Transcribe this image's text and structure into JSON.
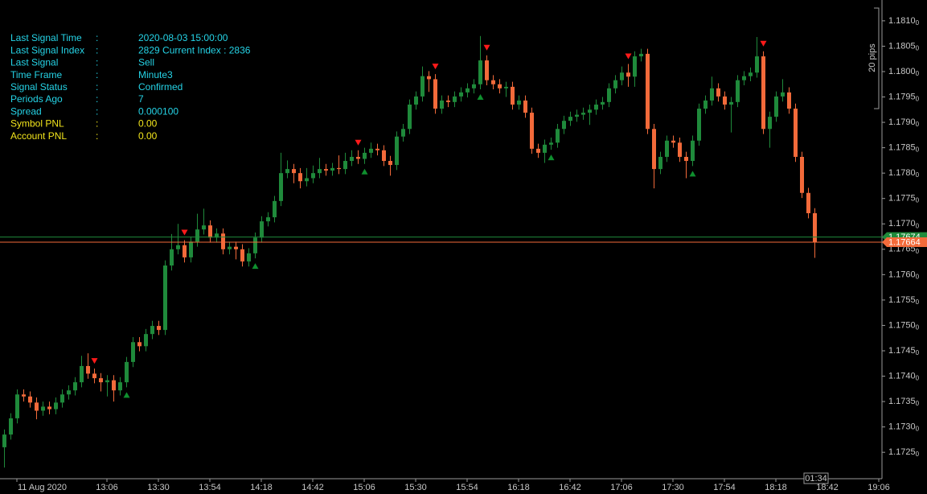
{
  "chart_data": {
    "type": "candlestick",
    "categories": [
      null,
      null,
      "11 Aug 2020",
      null,
      null,
      null,
      null,
      null,
      null,
      null,
      null,
      null,
      null,
      null,
      null,
      null,
      "13:06",
      null,
      null,
      null,
      null,
      null,
      null,
      null,
      "13:30",
      null,
      null,
      null,
      null,
      null,
      null,
      null,
      "13:54",
      null,
      null,
      null,
      null,
      null,
      null,
      null,
      "14:18",
      null,
      null,
      null,
      null,
      null,
      null,
      null,
      "14:42",
      null,
      null,
      null,
      null,
      null,
      null,
      null,
      "15:06",
      null,
      null,
      null,
      null,
      null,
      null,
      null,
      "15:30",
      null,
      null,
      null,
      null,
      null,
      null,
      null,
      "15:54",
      null,
      null,
      null,
      null,
      null,
      null,
      null,
      "16:18",
      null,
      null,
      null,
      null,
      null,
      null,
      null,
      "16:42",
      null,
      null,
      null,
      null,
      null,
      null,
      null,
      "17:06",
      null,
      null,
      null,
      null,
      null,
      null,
      null,
      "17:30",
      null,
      null,
      null,
      null,
      null,
      null,
      null,
      "17:54",
      null,
      null,
      null,
      null,
      null,
      null,
      null,
      "18:18",
      null,
      null,
      null,
      null,
      null,
      null,
      null,
      "18:42",
      null,
      null,
      null,
      null,
      null,
      null,
      null,
      "19:06"
    ],
    "open": [
      1.1726,
      1.17285,
      1.17317,
      1.17364,
      1.1736,
      1.17348,
      1.17332,
      1.1734,
      1.17335,
      1.17348,
      1.17364,
      1.17372,
      1.17388,
      1.1742,
      1.17405,
      1.17396,
      1.17388,
      1.17392,
      1.17372,
      1.17388,
      1.17428,
      1.17467,
      1.17459,
      1.17483,
      1.17499,
      1.17491,
      1.17618,
      1.1765,
      1.17658,
      1.17634,
      1.17665,
      1.17689,
      1.17697,
      1.17673,
      1.17681,
      1.1765,
      1.17655,
      1.1765,
      1.17626,
      1.17642,
      1.17673,
      1.17705,
      1.17713,
      1.17745,
      1.178,
      1.17808,
      1.178,
      1.17784,
      1.1779,
      1.178,
      1.17808,
      1.17805,
      1.1781,
      1.17808,
      1.17824,
      1.17832,
      1.17828,
      1.1784,
      1.17848,
      1.17845,
      1.17824,
      1.17816,
      1.17872,
      1.17887,
      1.17935,
      1.17951,
      1.17991,
      1.17985,
      1.17927,
      1.17943,
      1.1794,
      1.17951,
      1.17959,
      1.17967,
      1.17975,
      1.18022,
      1.17983,
      1.17975,
      1.17967,
      1.1797,
      1.17935,
      1.17943,
      1.17919,
      1.17848,
      1.1784,
      1.17856,
      1.1786,
      1.17887,
      1.17903,
      1.17911,
      1.17915,
      1.17919,
      1.17925,
      1.17935,
      1.1794,
      1.17967,
      1.17983,
      1.17998,
      1.1799,
      1.1803,
      1.18035,
      1.17887,
      1.17808,
      1.17832,
      1.17864,
      1.1786,
      1.17832,
      1.17824,
      1.17864,
      1.17927,
      1.17943,
      1.17967,
      1.17951,
      1.17935,
      1.1794,
      1.17983,
      1.17991,
      1.17998,
      1.1803,
      1.17887,
      1.17911,
      1.17951,
      1.17959,
      1.17927,
      1.17832,
      1.17761,
      1.17721,
      null,
      null,
      null,
      null,
      null,
      null,
      null,
      null,
      null,
      null
    ],
    "high": [
      1.17295,
      1.17327,
      1.17374,
      1.17374,
      1.1737,
      1.17358,
      1.1735,
      1.1735,
      1.17358,
      1.17374,
      1.17382,
      1.17398,
      1.1744,
      1.17445,
      1.17415,
      1.17406,
      1.17402,
      1.17402,
      1.17398,
      1.17438,
      1.17477,
      1.17477,
      1.17493,
      1.17509,
      1.17509,
      1.17628,
      1.1768,
      1.177,
      1.17668,
      1.17675,
      1.1772,
      1.1773,
      1.17707,
      1.17691,
      1.17691,
      1.17665,
      1.17665,
      1.1766,
      1.17652,
      1.17683,
      1.17715,
      1.17723,
      1.17755,
      1.1784,
      1.17825,
      1.17818,
      1.1781,
      1.1781,
      1.17815,
      1.1783,
      1.17818,
      1.1782,
      1.17835,
      1.1784,
      1.17845,
      1.17845,
      1.1785,
      1.1786,
      1.17858,
      1.17855,
      1.17834,
      1.17882,
      1.17897,
      1.17945,
      1.17961,
      1.1801,
      1.18001,
      1.17995,
      1.17953,
      1.17953,
      1.17961,
      1.17969,
      1.17977,
      1.17985,
      1.1807,
      1.18032,
      1.17993,
      1.17985,
      1.1798,
      1.1798,
      1.17953,
      1.17953,
      1.17929,
      1.17858,
      1.17866,
      1.1787,
      1.17897,
      1.17913,
      1.17921,
      1.17925,
      1.17929,
      1.17935,
      1.17945,
      1.1795,
      1.17977,
      1.17993,
      1.1801,
      1.18015,
      1.1804,
      1.18045,
      1.18045,
      1.17897,
      1.17842,
      1.17874,
      1.17874,
      1.1787,
      1.17842,
      1.17874,
      1.17937,
      1.17953,
      1.1799,
      1.17977,
      1.17961,
      1.1795,
      1.17993,
      1.18001,
      1.18008,
      1.18068,
      1.1804,
      1.17921,
      1.17961,
      1.17985,
      1.17969,
      1.17937,
      1.17842,
      1.17771,
      1.17731,
      null,
      null,
      null,
      null,
      null,
      null,
      null,
      null,
      null,
      null
    ],
    "low": [
      1.1722,
      1.17275,
      1.17307,
      1.1735,
      1.17338,
      1.17315,
      1.17322,
      1.17325,
      1.17325,
      1.17338,
      1.17354,
      1.17362,
      1.17378,
      1.17395,
      1.17386,
      1.1737,
      1.1736,
      1.1735,
      1.17362,
      1.17378,
      1.17418,
      1.17449,
      1.17449,
      1.17473,
      1.17481,
      1.17481,
      1.17608,
      1.1764,
      1.17624,
      1.17624,
      1.17655,
      1.17679,
      1.17663,
      1.17663,
      1.1764,
      1.1764,
      1.1763,
      1.17616,
      1.17616,
      1.17632,
      1.17663,
      1.17695,
      1.17703,
      1.17735,
      1.1779,
      1.1778,
      1.1777,
      1.17774,
      1.1778,
      1.1779,
      1.17795,
      1.17795,
      1.17798,
      1.17798,
      1.17814,
      1.17818,
      1.17818,
      1.1783,
      1.17835,
      1.17814,
      1.17795,
      1.17806,
      1.17862,
      1.17877,
      1.17925,
      1.17941,
      1.1796,
      1.17917,
      1.17917,
      1.1793,
      1.1793,
      1.17941,
      1.17949,
      1.17957,
      1.17965,
      1.17973,
      1.17965,
      1.17957,
      1.1795,
      1.17925,
      1.17925,
      1.17909,
      1.17838,
      1.1783,
      1.1782,
      1.17846,
      1.1785,
      1.17877,
      1.17893,
      1.17901,
      1.17905,
      1.17895,
      1.17915,
      1.17925,
      1.1793,
      1.17957,
      1.17973,
      1.1797,
      1.1797,
      1.1802,
      1.17877,
      1.1777,
      1.17798,
      1.17822,
      1.1785,
      1.17822,
      1.1779,
      1.17814,
      1.17854,
      1.17917,
      1.17933,
      1.17941,
      1.17925,
      1.1788,
      1.1793,
      1.17973,
      1.17981,
      1.17988,
      1.17877,
      1.1785,
      1.17901,
      1.17941,
      1.17917,
      1.17822,
      1.17751,
      1.17711,
      1.17633,
      null,
      null,
      null,
      null,
      null,
      null,
      null,
      null,
      null,
      null
    ],
    "close": [
      1.17285,
      1.17317,
      1.17364,
      1.1736,
      1.17348,
      1.17332,
      1.1734,
      1.17335,
      1.17348,
      1.17364,
      1.17372,
      1.17388,
      1.1742,
      1.17405,
      1.17396,
      1.17388,
      1.17392,
      1.17372,
      1.17388,
      1.17428,
      1.17467,
      1.17459,
      1.17483,
      1.17499,
      1.17491,
      1.17618,
      1.1765,
      1.17658,
      1.17634,
      1.17665,
      1.17689,
      1.17697,
      1.17673,
      1.17681,
      1.1765,
      1.17655,
      1.1765,
      1.17626,
      1.17642,
      1.17673,
      1.17705,
      1.17713,
      1.17745,
      1.178,
      1.17808,
      1.178,
      1.17784,
      1.1779,
      1.178,
      1.17808,
      1.17805,
      1.1781,
      1.17808,
      1.17824,
      1.17832,
      1.17828,
      1.1784,
      1.17848,
      1.17845,
      1.17824,
      1.17816,
      1.17872,
      1.17887,
      1.17935,
      1.17951,
      1.17991,
      1.17985,
      1.17927,
      1.17943,
      1.1794,
      1.17951,
      1.17959,
      1.17967,
      1.17975,
      1.18022,
      1.17983,
      1.17975,
      1.17967,
      1.1797,
      1.17935,
      1.17943,
      1.17919,
      1.17848,
      1.1784,
      1.17856,
      1.1786,
      1.17887,
      1.17903,
      1.17911,
      1.17915,
      1.17919,
      1.17925,
      1.17935,
      1.1794,
      1.17967,
      1.17983,
      1.17998,
      1.1799,
      1.1803,
      1.18035,
      1.17887,
      1.17808,
      1.17832,
      1.17864,
      1.1786,
      1.17832,
      1.17824,
      1.17864,
      1.17927,
      1.17943,
      1.17967,
      1.17951,
      1.17935,
      1.1794,
      1.17983,
      1.17991,
      1.17998,
      1.1803,
      1.17887,
      1.17911,
      1.17951,
      1.17959,
      1.17927,
      1.17832,
      1.17761,
      1.17721,
      1.17664,
      null,
      null,
      null,
      null,
      null,
      null,
      null,
      null,
      null,
      null
    ],
    "up_color": "#1f8a3b",
    "down_color": "#f26a3a",
    "sell_signals": [
      14,
      28,
      55,
      67,
      75,
      97,
      118
    ],
    "sell_color": "#ff1a1a",
    "buy_signals": [
      19,
      39,
      56,
      74,
      85,
      107
    ],
    "buy_color": "#0f8f2e",
    "ylim": [
      1.17198,
      1.18141
    ],
    "yticks": [
      {
        "value": 1.1725,
        "label": "1.17250"
      },
      {
        "value": 1.173,
        "label": "1.17300"
      },
      {
        "value": 1.1735,
        "label": "1.17350"
      },
      {
        "value": 1.174,
        "label": "1.17400"
      },
      {
        "value": 1.1745,
        "label": "1.17450"
      },
      {
        "value": 1.175,
        "label": "1.17500"
      },
      {
        "value": 1.1755,
        "label": "1.17550"
      },
      {
        "value": 1.176,
        "label": "1.17600"
      },
      {
        "value": 1.1765,
        "label": "1.17650"
      },
      {
        "value": 1.177,
        "label": "1.17700"
      },
      {
        "value": 1.1775,
        "label": "1.17750"
      },
      {
        "value": 1.178,
        "label": "1.17800"
      },
      {
        "value": 1.1785,
        "label": "1.17850"
      },
      {
        "value": 1.179,
        "label": "1.17900"
      },
      {
        "value": 1.1795,
        "label": "1.17950"
      },
      {
        "value": 1.18,
        "label": "1.18000"
      },
      {
        "value": 1.1805,
        "label": "1.18050"
      },
      {
        "value": 1.181,
        "label": "1.18100"
      }
    ],
    "ask": 1.17674,
    "ask_color": "#1f8a3b",
    "bid": 1.17664,
    "bid_color": "#f26a3a",
    "scale_label": "20 pips",
    "countdown": "01:34"
  },
  "info_panel": {
    "separator": ":",
    "rows": [
      {
        "label": "Last Signal Time",
        "value": "2020-08-03 15:00:00",
        "color": "#25d3e6"
      },
      {
        "label": "Last Signal Index",
        "value": "2829 Current Index : 2836",
        "color": "#25d3e6"
      },
      {
        "label": "Last Signal",
        "value": "Sell",
        "color": "#25d3e6"
      },
      {
        "label": "Time Frame",
        "value": "Minute3",
        "color": "#25d3e6"
      },
      {
        "label": "Signal Status",
        "value": "Confirmed",
        "color": "#25d3e6"
      },
      {
        "label": "Periods Ago",
        "value": "7",
        "color": "#25d3e6"
      },
      {
        "label": "Spread",
        "value": "0.000100",
        "color": "#25d3e6"
      },
      {
        "label": "Symbol PNL",
        "value": "0.00",
        "color": "#f2e51c"
      },
      {
        "label": "Account PNL",
        "value": "0.00",
        "color": "#f2e51c"
      }
    ]
  }
}
